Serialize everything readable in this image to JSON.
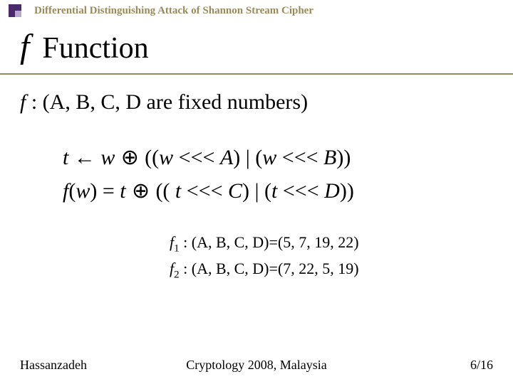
{
  "header": {
    "title": "Differential Distinguishing Attack of Shannon Stream Cipher",
    "bullet_outer_color": "#4a2a6a",
    "bullet_inner_color": "#b8a8d0",
    "title_color": "#9a8a5a"
  },
  "title": {
    "f": "f",
    "text": "Function"
  },
  "divider_color": "#9a8a5a",
  "subtitle": {
    "f": "f",
    "rest": " : (A, B, C, D are fixed numbers)"
  },
  "equations": {
    "line1": {
      "t": "t",
      "arrow": " ← ",
      "w1": "w",
      "oplus": " ⊕ ",
      "open1": "((",
      "w2": "w",
      "shift": " <<< ",
      "A": "A",
      "mid1": ") | (",
      "w3": "w",
      "B": "B",
      "close1": "))"
    },
    "line2": {
      "fw_f": "f",
      "fw_open": "(",
      "fw_w": "w",
      "fw_close_eq": ") =  ",
      "t1": "t",
      "oplus": " ⊕ ",
      "open2": "(( ",
      "t2": "t",
      "shift": " <<<  ",
      "C": "C",
      "mid2": ") | (",
      "t3": "t",
      "shift2": "  <<< ",
      "D": "D",
      "close2": "))"
    }
  },
  "fvalues": {
    "f1_f": "f",
    "f1_sub": "1",
    "f1_rest": " :  (A, B, C, D)=(5, 7, 19, 22)",
    "f2_f": "f",
    "f2_sub": "2",
    "f2_rest": " :  (A, B, C, D)=(7, 22, 5, 19)"
  },
  "footer": {
    "left": "Hassanzadeh",
    "center": "Cryptology 2008, Malaysia",
    "right": "6/16"
  }
}
